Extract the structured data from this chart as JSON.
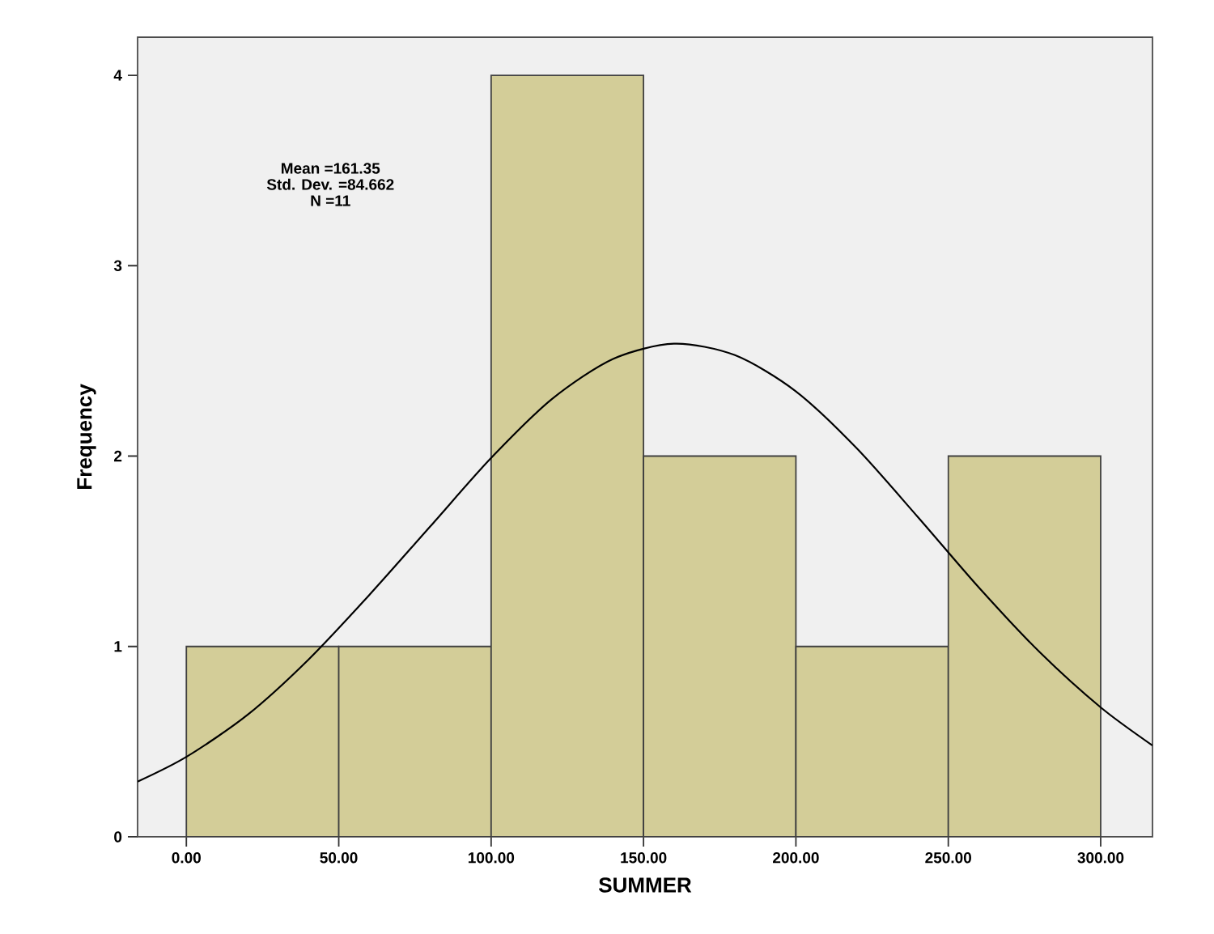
{
  "chart_data": {
    "type": "histogram",
    "xlabel": "SUMMER",
    "ylabel": "Frequency",
    "annotations": [
      "Mean =161.35",
      "Std. Dev. =84.662",
      "N =11"
    ],
    "series": [
      {
        "color": "#d3cd98",
        "bins": [
          0,
          50,
          100,
          150,
          200,
          250,
          300
        ],
        "values": [
          1,
          1,
          4,
          2,
          1,
          2
        ]
      },
      {
        "type": "line",
        "color": "#000000",
        "x": [
          -16,
          0,
          20,
          40,
          60,
          80,
          100,
          120,
          140,
          160,
          180,
          200,
          220,
          240,
          260,
          280,
          300,
          317
        ],
        "values": [
          0.29,
          0.42,
          0.64,
          0.93,
          1.27,
          1.63,
          1.99,
          2.3,
          2.51,
          2.59,
          2.53,
          2.34,
          2.04,
          1.68,
          1.31,
          0.97,
          0.68,
          0.48
        ]
      }
    ],
    "xlim": [
      -16,
      317
    ],
    "ylim": [
      0,
      4.2
    ],
    "xticks": [
      {
        "value": 0,
        "label": "0.00"
      },
      {
        "value": 50,
        "label": "50.00"
      },
      {
        "value": 100,
        "label": "100.00"
      },
      {
        "value": 150,
        "label": "150.00"
      },
      {
        "value": 200,
        "label": "200.00"
      },
      {
        "value": 250,
        "label": "250.00"
      },
      {
        "value": 300,
        "label": "300.00"
      }
    ],
    "yticks": [
      0,
      1,
      2,
      3,
      4
    ]
  }
}
